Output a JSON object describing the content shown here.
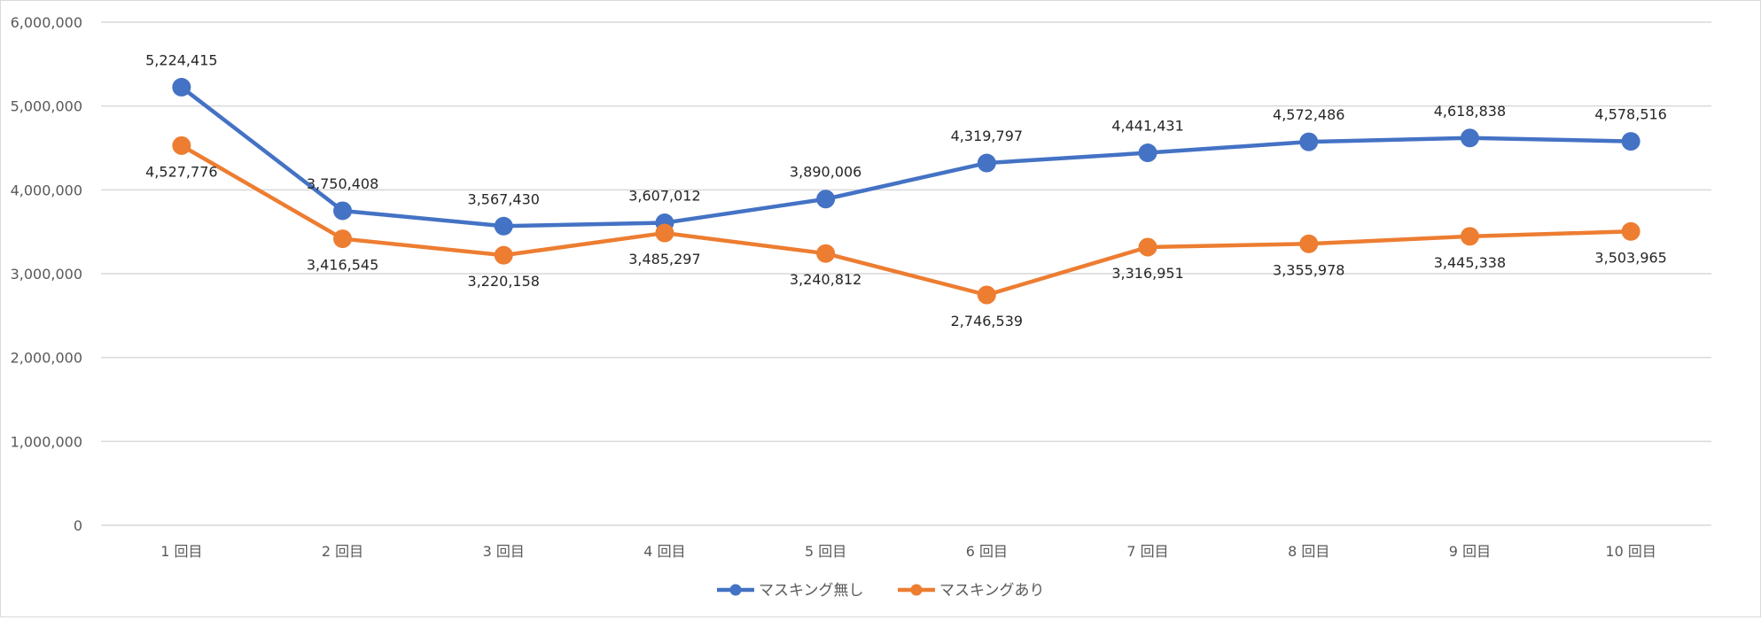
{
  "chart_data": {
    "type": "line",
    "title": "",
    "xlabel": "",
    "ylabel": "",
    "categories": [
      "1 回目",
      "2 回目",
      "3 回目",
      "4 回目",
      "5 回目",
      "6 回目",
      "7 回目",
      "8 回目",
      "9 回目",
      "10 回目"
    ],
    "ylim": [
      0,
      6000000
    ],
    "yticks": [
      "0",
      "1,000,000",
      "2,000,000",
      "3,000,000",
      "4,000,000",
      "5,000,000",
      "6,000,000"
    ],
    "grid": true,
    "legend_position": "bottom",
    "series": [
      {
        "name": "マスキング無し",
        "color": "#4472c4",
        "values": [
          5224415,
          3750408,
          3567430,
          3607012,
          3890006,
          4319797,
          4441431,
          4572486,
          4618838,
          4578516
        ],
        "labels": [
          "5,224,415",
          "3,750,408",
          "3,567,430",
          "3,607,012",
          "3,890,006",
          "4,319,797",
          "4,441,431",
          "4,572,486",
          "4,618,838",
          "4,578,516"
        ]
      },
      {
        "name": "マスキングあり",
        "color": "#ed7d31",
        "values": [
          4527776,
          3416545,
          3220158,
          3485297,
          3240812,
          2746539,
          3316951,
          3355978,
          3445338,
          3503965
        ],
        "labels": [
          "4,527,776",
          "3,416,545",
          "3,220,158",
          "3,485,297",
          "3,240,812",
          "2,746,539",
          "3,316,951",
          "3,355,978",
          "3,445,338",
          "3,503,965"
        ]
      }
    ]
  }
}
